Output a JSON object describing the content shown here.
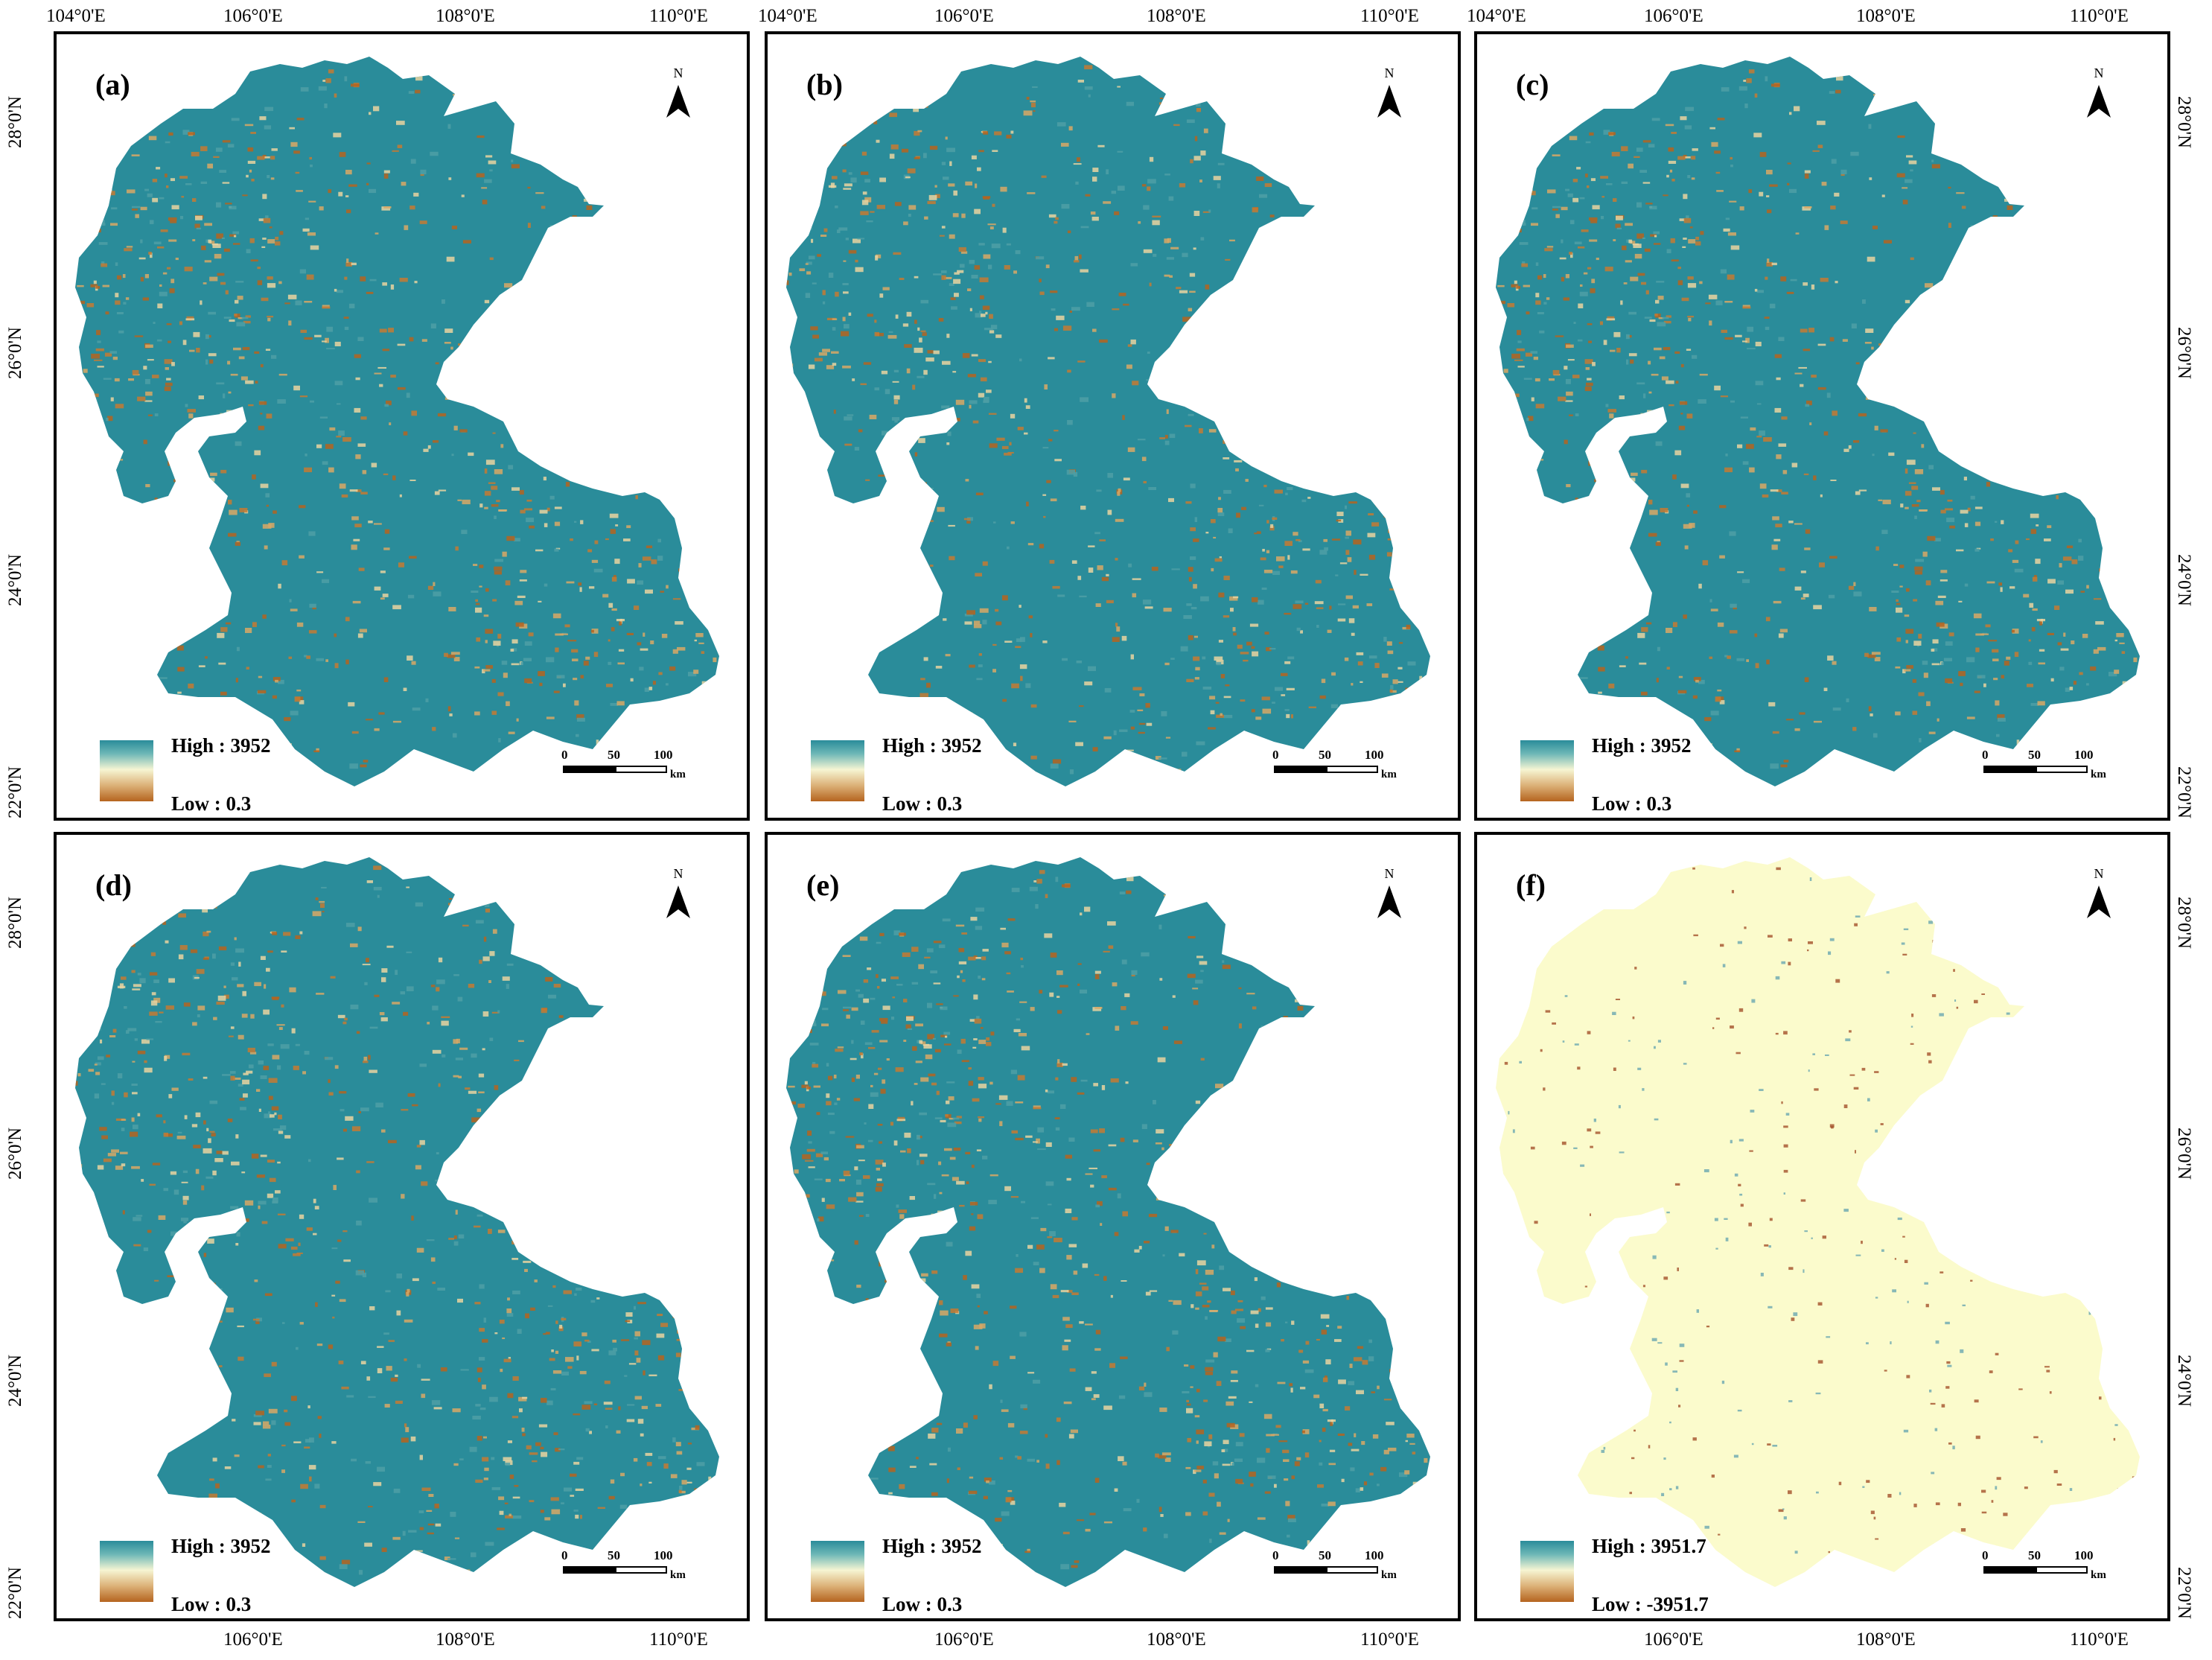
{
  "panels": [
    {
      "label": "(a)",
      "high": "High : 3952",
      "low": "Low : 0.3",
      "type": "pred"
    },
    {
      "label": "(b)",
      "high": "High : 3952",
      "low": "Low : 0.3",
      "type": "pred"
    },
    {
      "label": "(c)",
      "high": "High : 3952",
      "low": "Low : 0.3",
      "type": "pred"
    },
    {
      "label": "(d)",
      "high": "High : 3952",
      "low": "Low : 0.3",
      "type": "pred"
    },
    {
      "label": "(e)",
      "high": "High : 3952",
      "low": "Low : 0.3",
      "type": "pred"
    },
    {
      "label": "(f)",
      "high": "High : 3951.7",
      "low": "Low : -3951.7",
      "type": "diff"
    }
  ],
  "north_letter": "N",
  "scale": {
    "zero": "0",
    "mid": "50",
    "max": "100",
    "unit": "km"
  },
  "lon_ticks": [
    "104°0'E",
    "106°0'E",
    "108°0'E",
    "110°0'E"
  ],
  "lat_ticks": [
    "28°0'N",
    "26°0'N",
    "24°0'N",
    "22°0'N"
  ],
  "colors": {
    "high": "#2a8c9a",
    "mid": "#f6f5d3",
    "low": "#b5641f",
    "diff_fill": "#fbfbcc"
  }
}
